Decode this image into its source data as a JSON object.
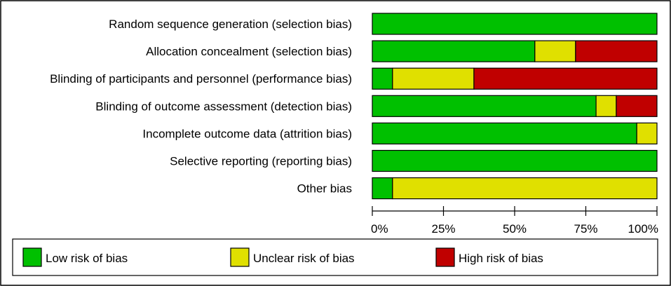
{
  "chart_data": {
    "type": "bar",
    "orientation": "horizontal",
    "stacked": true,
    "title": "",
    "xlabel": "",
    "ylabel": "",
    "xlim": [
      0,
      100
    ],
    "x_ticks": [
      0,
      25,
      50,
      75,
      100
    ],
    "x_tick_labels": [
      "0%",
      "25%",
      "50%",
      "75%",
      "100%"
    ],
    "categories": [
      "Random sequence generation (selection bias)",
      "Allocation concealment (selection bias)",
      "Blinding of participants and personnel (performance bias)",
      "Blinding of outcome assessment (detection bias)",
      "Incomplete outcome data (attrition bias)",
      "Selective reporting (reporting bias)",
      "Other bias"
    ],
    "series": [
      {
        "name": "Low risk of bias",
        "color": "#00c000",
        "values": [
          100,
          57.1,
          7.1,
          78.6,
          92.9,
          100,
          7.1
        ]
      },
      {
        "name": "Unclear risk of bias",
        "color": "#e0e000",
        "values": [
          0,
          14.3,
          28.6,
          7.1,
          7.1,
          0,
          92.9
        ]
      },
      {
        "name": "High risk of bias",
        "color": "#c00000",
        "values": [
          0,
          28.6,
          64.3,
          14.3,
          0,
          0,
          0
        ]
      }
    ],
    "legend_position": "bottom"
  }
}
